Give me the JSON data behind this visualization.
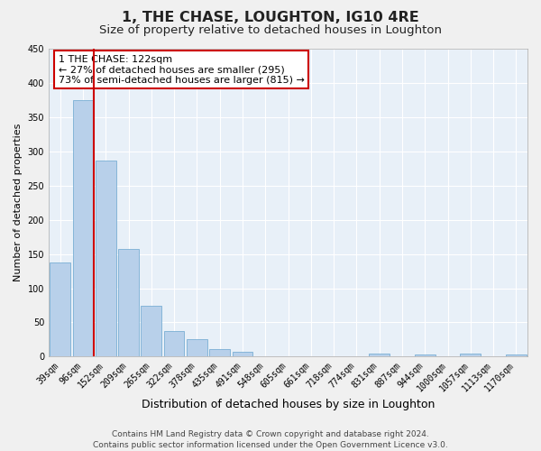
{
  "title": "1, THE CHASE, LOUGHTON, IG10 4RE",
  "subtitle": "Size of property relative to detached houses in Loughton",
  "xlabel": "Distribution of detached houses by size in Loughton",
  "ylabel": "Number of detached properties",
  "bar_labels": [
    "39sqm",
    "96sqm",
    "152sqm",
    "209sqm",
    "265sqm",
    "322sqm",
    "378sqm",
    "435sqm",
    "491sqm",
    "548sqm",
    "605sqm",
    "661sqm",
    "718sqm",
    "774sqm",
    "831sqm",
    "887sqm",
    "944sqm",
    "1000sqm",
    "1057sqm",
    "1113sqm",
    "1170sqm"
  ],
  "bar_values": [
    137,
    375,
    286,
    157,
    74,
    38,
    25,
    11,
    7,
    1,
    1,
    1,
    0,
    0,
    4,
    0,
    3,
    0,
    4,
    0,
    3
  ],
  "bar_color": "#b8d0ea",
  "bar_edge_color": "#7aafd4",
  "background_color": "#e8f0f8",
  "grid_color": "#ffffff",
  "vline_color": "#cc0000",
  "vline_x_index": 1,
  "annotation_text": "1 THE CHASE: 122sqm\n← 27% of detached houses are smaller (295)\n73% of semi-detached houses are larger (815) →",
  "annotation_box_color": "#cc0000",
  "ylim": [
    0,
    450
  ],
  "yticks": [
    0,
    50,
    100,
    150,
    200,
    250,
    300,
    350,
    400,
    450
  ],
  "footer_line1": "Contains HM Land Registry data © Crown copyright and database right 2024.",
  "footer_line2": "Contains public sector information licensed under the Open Government Licence v3.0.",
  "title_fontsize": 11.5,
  "subtitle_fontsize": 9.5,
  "xlabel_fontsize": 9,
  "ylabel_fontsize": 8,
  "tick_fontsize": 7,
  "annotation_fontsize": 8,
  "footer_fontsize": 6.5
}
